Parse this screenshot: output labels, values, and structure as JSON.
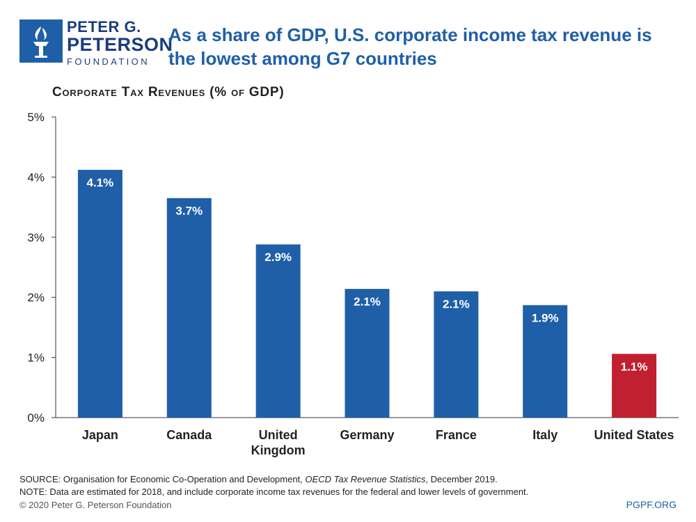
{
  "logo": {
    "line1": "PETER G.",
    "line2": "PETERSON",
    "line3": "FOUNDATION"
  },
  "headline": "As a share of GDP, U.S. corporate income tax revenue is the lowest among G7 countries",
  "chart_data": {
    "type": "bar",
    "title": "Corporate Tax Revenues (% of GDP)",
    "categories": [
      "Japan",
      "Canada",
      "United Kingdom",
      "Germany",
      "France",
      "Italy",
      "United States"
    ],
    "category_lines": [
      [
        "Japan"
      ],
      [
        "Canada"
      ],
      [
        "United",
        "Kingdom"
      ],
      [
        "Germany"
      ],
      [
        "France"
      ],
      [
        "Italy"
      ],
      [
        "United States"
      ]
    ],
    "values": [
      4.12,
      3.65,
      2.88,
      2.14,
      2.1,
      1.87,
      1.06
    ],
    "data_labels": [
      "4.1%",
      "3.7%",
      "2.9%",
      "2.1%",
      "2.1%",
      "1.9%",
      "1.1%"
    ],
    "ylim": [
      0,
      5
    ],
    "yticks": [
      0,
      1,
      2,
      3,
      4,
      5
    ],
    "ytick_labels": [
      "0%",
      "1%",
      "2%",
      "3%",
      "4%",
      "5%"
    ],
    "colors": {
      "default": "#1f5fa8",
      "highlight": "#c0202f"
    },
    "highlight_index": 6,
    "grid": false
  },
  "footer": {
    "source_prefix": "SOURCE: Organisation for Economic Co-Operation and Development, ",
    "source_title": "OECD Tax Revenue Statistics",
    "source_suffix": ", December 2019.",
    "note": "NOTE: Data are estimated for 2018, and include corporate income tax revenues for the federal and lower levels of government.",
    "copyright": "© 2020 Peter G. Peterson Foundation",
    "site": "PGPF.ORG"
  }
}
